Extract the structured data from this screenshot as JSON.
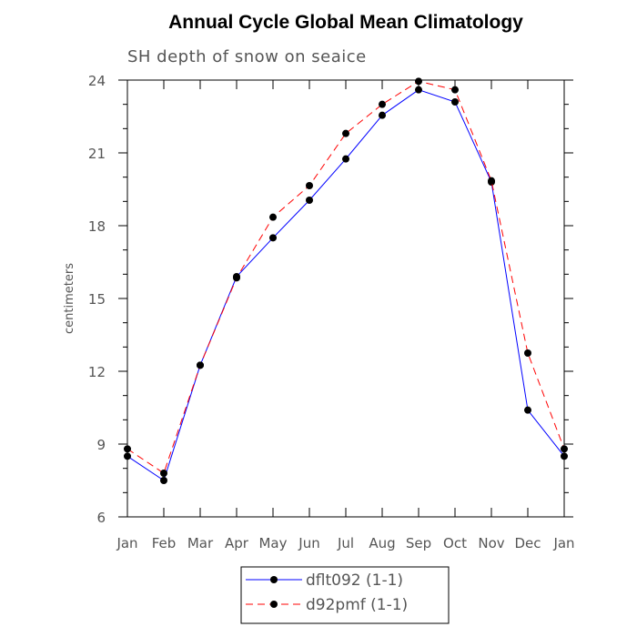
{
  "chart_data": {
    "type": "line",
    "title": "Annual Cycle Global Mean Climatology",
    "subtitle": "SH depth of snow on seaice",
    "xlabel": "",
    "ylabel": "centimeters",
    "categories": [
      "Jan",
      "Feb",
      "Mar",
      "Apr",
      "May",
      "Jun",
      "Jul",
      "Aug",
      "Sep",
      "Oct",
      "Nov",
      "Dec",
      "Jan"
    ],
    "ylim": [
      6,
      24
    ],
    "yticks": [
      6,
      9,
      12,
      15,
      18,
      21,
      24
    ],
    "series": [
      {
        "name": "dflt092 (1-1)",
        "color": "#0000ff",
        "dash": "solid",
        "values": [
          8.5,
          7.5,
          12.25,
          15.9,
          17.5,
          19.05,
          20.75,
          22.55,
          23.6,
          23.1,
          19.8,
          10.4,
          8.5
        ]
      },
      {
        "name": "d92pmf (1-1)",
        "color": "#ff0000",
        "dash": "dashed",
        "values": [
          8.8,
          7.8,
          12.25,
          15.85,
          18.35,
          19.65,
          21.8,
          23.0,
          23.95,
          23.6,
          19.85,
          12.75,
          8.8
        ]
      }
    ],
    "grid": false,
    "legend_position": "bottom"
  }
}
